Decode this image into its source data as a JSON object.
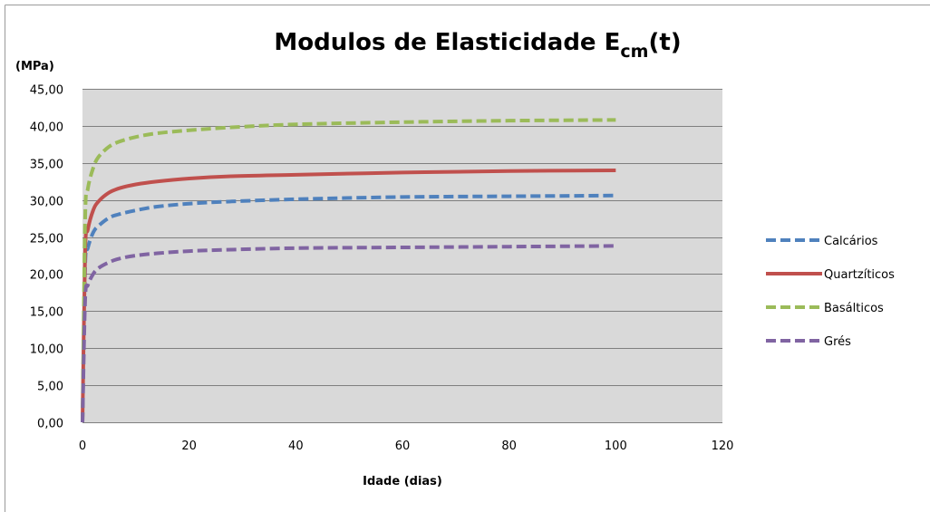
{
  "chart_data": {
    "type": "line",
    "title": "Modulos de Elasticidade",
    "title_symbol": "E",
    "title_symbol_subscript": "cm",
    "title_suffix": "(t)",
    "ylabel": "(MPa)",
    "xlabel": "Idade (dias)",
    "xlim": [
      0,
      120
    ],
    "ylim": [
      0,
      45
    ],
    "xticks": [
      0,
      20,
      40,
      60,
      80,
      100,
      120
    ],
    "xtick_labels": [
      "0",
      "20",
      "40",
      "60",
      "80",
      "100",
      "120"
    ],
    "yticks": [
      0,
      5,
      10,
      15,
      20,
      25,
      30,
      35,
      40,
      45
    ],
    "ytick_labels": [
      "0,00",
      "5,00",
      "10,00",
      "15,00",
      "20,00",
      "25,00",
      "30,00",
      "35,00",
      "40,00",
      "45,00"
    ],
    "grid": true,
    "legend_position": "right",
    "series": [
      {
        "name": "Calcários",
        "color": "#4f81bd",
        "dashed": true,
        "x": [
          0,
          0.5,
          1,
          2,
          3,
          5,
          7,
          10,
          14,
          20,
          28,
          40,
          60,
          80,
          100
        ],
        "y": [
          0,
          21.0,
          23.5,
          25.6,
          26.5,
          27.6,
          28.1,
          28.6,
          29.1,
          29.5,
          29.8,
          30.1,
          30.4,
          30.5,
          30.6
        ]
      },
      {
        "name": "Quartzíticos",
        "color": "#c0504d",
        "dashed": false,
        "x": [
          0,
          0.5,
          1,
          2,
          3,
          5,
          7,
          10,
          14,
          20,
          28,
          40,
          60,
          80,
          100
        ],
        "y": [
          0,
          23.0,
          26.0,
          28.6,
          29.8,
          31.0,
          31.6,
          32.1,
          32.5,
          32.9,
          33.2,
          33.4,
          33.7,
          33.9,
          34.0
        ]
      },
      {
        "name": "Basálticos",
        "color": "#9bbb59",
        "dashed": true,
        "x": [
          0,
          0.5,
          1,
          2,
          3,
          5,
          7,
          10,
          14,
          20,
          28,
          40,
          60,
          80,
          100
        ],
        "y": [
          0,
          27.5,
          31.5,
          34.3,
          35.8,
          37.2,
          37.9,
          38.5,
          39.0,
          39.4,
          39.8,
          40.2,
          40.5,
          40.7,
          40.8
        ]
      },
      {
        "name": "Grés",
        "color": "#8064a2",
        "dashed": true,
        "x": [
          0,
          0.5,
          1,
          2,
          3,
          5,
          7,
          10,
          14,
          20,
          28,
          40,
          60,
          80,
          100
        ],
        "y": [
          0,
          16.5,
          18.5,
          20.0,
          20.8,
          21.6,
          22.1,
          22.5,
          22.8,
          23.1,
          23.3,
          23.5,
          23.6,
          23.7,
          23.8
        ]
      }
    ]
  }
}
